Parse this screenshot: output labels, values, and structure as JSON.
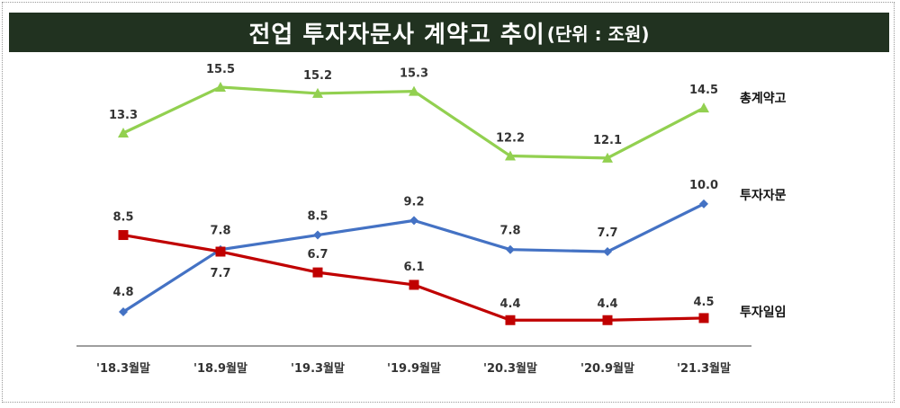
{
  "title": {
    "main": "전업 투자자문사 계약고 추이",
    "unit": "(단위 : 조원)"
  },
  "chart_data": {
    "type": "line",
    "categories": [
      "'18.3월말",
      "'18.9월말",
      "'19.3월말",
      "'19.9월말",
      "'20.3월말",
      "'20.9월말",
      "'21.3월말"
    ],
    "series": [
      {
        "name": "총계약고",
        "color": "#92d050",
        "marker": "triangle",
        "values": [
          13.3,
          15.5,
          15.2,
          15.3,
          12.2,
          12.1,
          14.5
        ]
      },
      {
        "name": "투자자문",
        "color": "#4472c4",
        "marker": "diamond",
        "values": [
          4.8,
          7.8,
          8.5,
          9.2,
          7.8,
          7.7,
          10.0
        ]
      },
      {
        "name": "투자일임",
        "color": "#c00000",
        "marker": "square",
        "values": [
          8.5,
          7.7,
          6.7,
          6.1,
          4.4,
          4.4,
          4.5
        ]
      }
    ],
    "legend": "right",
    "grid": false
  }
}
